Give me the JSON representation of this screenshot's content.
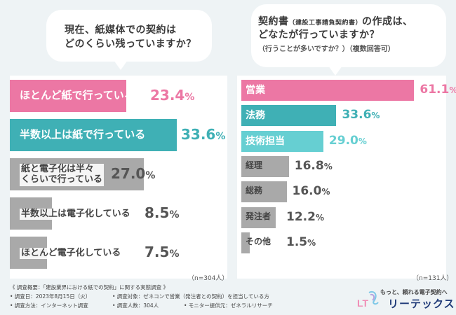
{
  "left_question": {
    "line1": "現在、紙媒体での契約は",
    "line2": "どのくらい残っていますか？"
  },
  "right_question": {
    "line1_a": "契約書",
    "line1_b": "（建設工事請負契約書）",
    "line1_c": "の作成は、",
    "line2": "どなたが行っていますか？",
    "line3": "（行うことが多いですか？）（複数回答可）"
  },
  "chart_data": [
    {
      "type": "bar",
      "orientation": "horizontal",
      "title": "現在、紙媒体での契約はどのくらい残っていますか？",
      "sample_size": "（n=304人）",
      "unit": "%",
      "xlim": [
        0,
        35
      ],
      "categories": [
        "ほとんど紙で行っている",
        "半数以上は紙で行っている",
        "紙と電子化は半々くらいで行っている",
        "半数以上は電子化している",
        "ほとんど電子化している"
      ],
      "label_lines": [
        [
          "ほとんど紙で行っている"
        ],
        [
          "半数以上は紙で行っている"
        ],
        [
          "紙と電子化は半々",
          "くらいで行っている"
        ],
        [
          "半数以上は電子化している"
        ],
        [
          "ほとんど電子化している"
        ]
      ],
      "values": [
        23.4,
        33.6,
        27.0,
        8.5,
        7.5
      ],
      "value_labels": [
        "23.4%",
        "33.6%",
        "27.0%",
        "8.5%",
        "7.5%"
      ],
      "colors": [
        "#ec77a4",
        "#3fb0b5",
        "#a9a9a9",
        "#a9a9a9",
        "#a9a9a9"
      ]
    },
    {
      "type": "bar",
      "orientation": "horizontal",
      "title": "契約書（建設工事請負契約書）の作成は、どなたが行っていますか？（行うことが多いですか？）（複数回答可）",
      "sample_size": "（n=131人）",
      "unit": "%",
      "xlim": [
        0,
        62
      ],
      "categories": [
        "営業",
        "法務",
        "技術担当",
        "経理",
        "総務",
        "発注者",
        "その他"
      ],
      "values": [
        61.1,
        33.6,
        29.0,
        16.8,
        16.0,
        12.2,
        1.5
      ],
      "value_labels": [
        "61.1%",
        "33.6%",
        "29.0%",
        "16.8%",
        "16.0%",
        "12.2%",
        "1.5%"
      ],
      "colors": [
        "#ec77a4",
        "#3fb0b5",
        "#66cfd2",
        "#a9a9a9",
        "#a9a9a9",
        "#a9a9a9",
        "#a9a9a9"
      ]
    }
  ],
  "footer": {
    "overview": "《 調査概要：「建設業界における紙での契約」に関する実態調査 》",
    "date": "• 調査日：2023年8月15日（火）",
    "target": "• 調査対象：ゼネコンで営業（発注者との契約）を担当している方",
    "method": "• 調査方法：インターネット調査",
    "count": "• 調査人数：304人",
    "provider": "• モニター提供元：ゼネラルリサーチ"
  },
  "logo": {
    "mark": "LT",
    "tagline": "もっと、頼れる電子契約へ",
    "name": "リーテックス"
  }
}
